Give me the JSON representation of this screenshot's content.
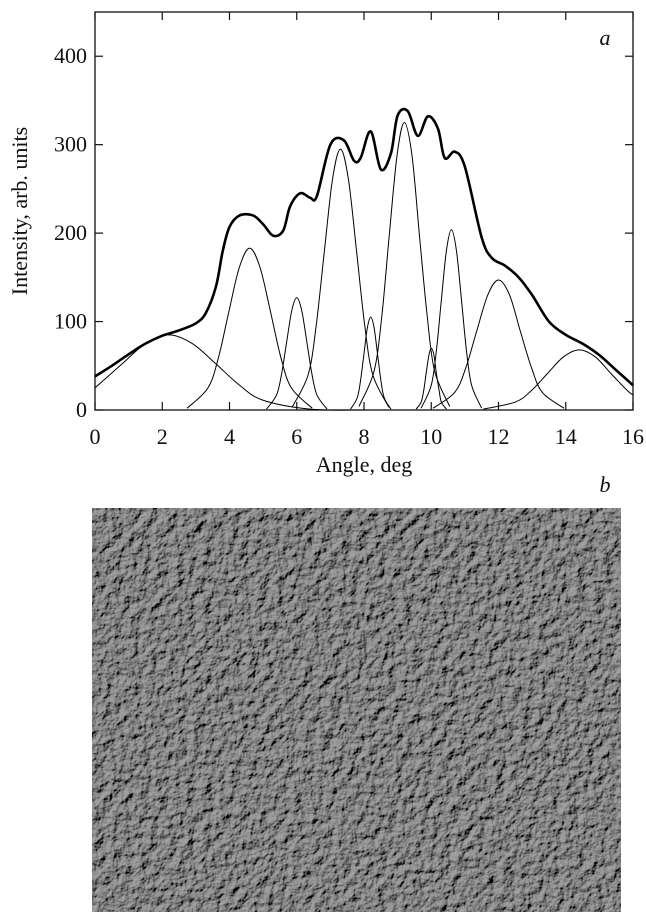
{
  "chart_data": {
    "type": "line",
    "annotations": {
      "panel_a": "a",
      "panel_b": "b"
    },
    "xlabel": "Angle, deg",
    "ylabel": "Intensity, arb. units",
    "xlim": [
      0,
      16
    ],
    "xticks": [
      0,
      2,
      4,
      6,
      8,
      10,
      12,
      14,
      16
    ],
    "ylim": [
      0,
      450
    ],
    "yticks": [
      0,
      100,
      200,
      300,
      400
    ],
    "grid": false,
    "series": [
      {
        "color": "#000000",
        "line_width": 2.6,
        "x": [
          0,
          0.5,
          1,
          1.5,
          2,
          2.5,
          3,
          3.3,
          3.6,
          3.8,
          4.0,
          4.3,
          4.7,
          5.0,
          5.3,
          5.6,
          5.8,
          6.1,
          6.4,
          6.6,
          7.0,
          7.4,
          7.7,
          7.9,
          8.2,
          8.5,
          8.8,
          9.0,
          9.3,
          9.6,
          9.9,
          10.2,
          10.4,
          10.7,
          11.0,
          11.5,
          11.8,
          12.2,
          12.6,
          13.0,
          13.5,
          14.0,
          14.5,
          15.0,
          15.5,
          16.0
        ],
        "values": [
          38,
          50,
          63,
          75,
          84,
          90,
          98,
          110,
          140,
          180,
          207,
          220,
          220,
          210,
          197,
          203,
          230,
          245,
          240,
          242,
          300,
          305,
          282,
          285,
          315,
          272,
          290,
          333,
          338,
          310,
          332,
          318,
          285,
          292,
          275,
          195,
          172,
          163,
          150,
          130,
          100,
          85,
          75,
          62,
          45,
          28
        ]
      },
      {
        "color": "#000000",
        "line_width": 1,
        "x": [
          0,
          0.8,
          1.5,
          2.2,
          2.9,
          3.6,
          4.3,
          5.0,
          6.4,
          8.0
        ],
        "values": [
          25,
          52,
          75,
          85,
          75,
          52,
          28,
          11,
          1,
          0
        ]
      },
      {
        "color": "#000000",
        "line_width": 1,
        "x": [
          2.74,
          3.36,
          3.67,
          3.98,
          4.29,
          4.6,
          4.91,
          5.22,
          5.53,
          5.84,
          6.46
        ],
        "values": [
          2,
          25,
          59,
          111,
          161,
          183,
          161,
          111,
          59,
          25,
          2
        ]
      },
      {
        "color": "#000000",
        "line_width": 1,
        "x": [
          5.1,
          5.4,
          5.55,
          5.7,
          5.85,
          6.0,
          6.15,
          6.3,
          6.45,
          6.6,
          6.9
        ],
        "values": [
          1,
          17,
          41,
          77,
          112,
          127,
          112,
          77,
          41,
          17,
          1
        ]
      },
      {
        "color": "#000000",
        "line_width": 1,
        "x": [
          5.86,
          6.34,
          6.58,
          6.82,
          7.06,
          7.3,
          7.54,
          7.78,
          8.02,
          8.26,
          8.74
        ],
        "values": [
          3,
          40,
          96,
          179,
          260,
          295,
          260,
          179,
          96,
          40,
          3
        ]
      },
      {
        "color": "#000000",
        "line_width": 1,
        "x": [
          7.6,
          7.8,
          7.9,
          8.0,
          8.1,
          8.2,
          8.3,
          8.4,
          8.5,
          8.6,
          8.8
        ],
        "values": [
          1,
          14,
          34,
          64,
          93,
          105,
          93,
          64,
          34,
          14,
          1
        ]
      },
      {
        "color": "#000000",
        "line_width": 1,
        "x": [
          7.85,
          8.3,
          8.53,
          8.75,
          8.98,
          9.2,
          9.43,
          9.65,
          9.88,
          10.1,
          10.55
        ],
        "values": [
          4,
          44,
          106,
          197,
          287,
          325,
          287,
          197,
          106,
          44,
          4
        ]
      },
      {
        "color": "#000000",
        "line_width": 1,
        "x": [
          9.55,
          9.7,
          9.78,
          9.85,
          9.93,
          10.0,
          10.08,
          10.15,
          10.23,
          10.3,
          10.45
        ],
        "values": [
          1,
          9,
          23,
          42,
          62,
          70,
          62,
          42,
          23,
          9,
          1
        ]
      },
      {
        "color": "#000000",
        "line_width": 1,
        "x": [
          9.7,
          10.0,
          10.15,
          10.3,
          10.45,
          10.6,
          10.75,
          10.9,
          11.05,
          11.2,
          11.5
        ],
        "values": [
          2,
          28,
          66,
          124,
          180,
          204,
          180,
          124,
          66,
          28,
          2
        ]
      },
      {
        "color": "#000000",
        "line_width": 1,
        "x": [
          10.05,
          10.7,
          11.03,
          11.35,
          11.68,
          12.0,
          12.33,
          12.65,
          12.98,
          13.3,
          13.95
        ],
        "values": [
          2,
          20,
          48,
          89,
          130,
          147,
          130,
          89,
          48,
          20,
          2
        ]
      },
      {
        "color": "#000000",
        "line_width": 1,
        "x": [
          11.55,
          12.5,
          12.98,
          13.45,
          13.93,
          14.4,
          14.88,
          15.35,
          15.83,
          16.0
        ],
        "values": [
          1,
          9,
          22,
          41,
          60,
          68,
          60,
          41,
          22,
          17
        ]
      }
    ]
  }
}
